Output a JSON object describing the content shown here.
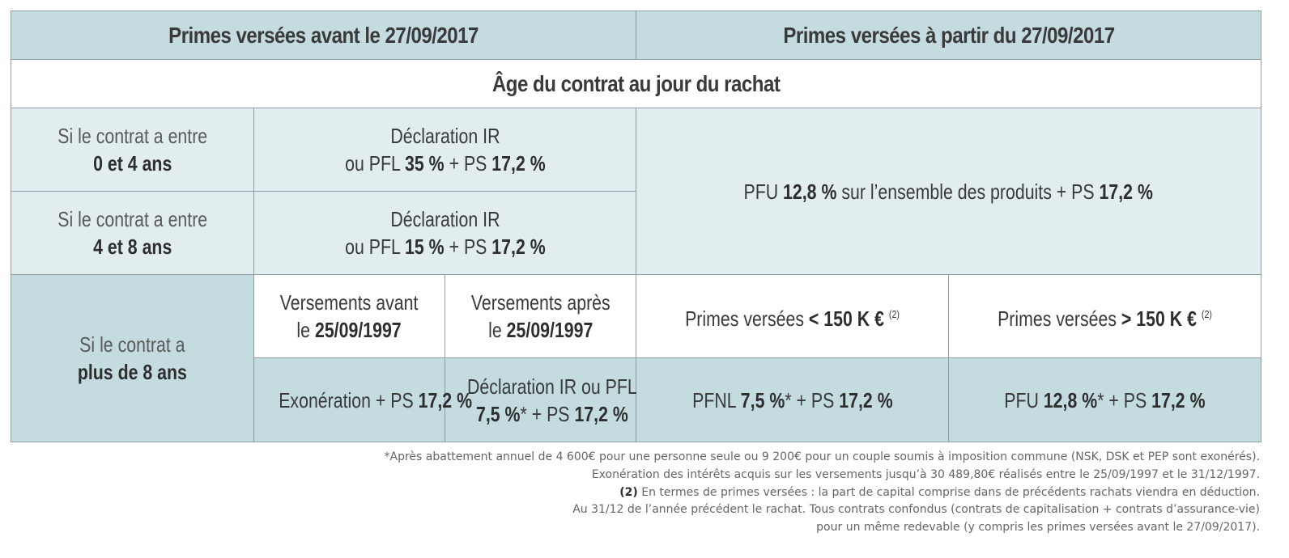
{
  "header": {
    "left": "Primes versées avant le 27/09/2017",
    "right": "Primes versées à partir du 27/09/2017"
  },
  "age_row": "Âge du contrat au jour du rachat",
  "rows": {
    "r1_label_a": "Si le contrat a entre",
    "r1_label_b": "0 et 4 ans",
    "r1_line1": "Déclaration IR",
    "r1_line2_pre": "ou PFL ",
    "r1_line2_b1": "35 %",
    "r1_line2_mid": " + PS ",
    "r1_line2_b2": "17,2 %",
    "r2_label_a": "Si le contrat a entre",
    "r2_label_b": "4 et 8 ans",
    "r2_line1": "Déclaration IR",
    "r2_line2_pre": "ou PFL ",
    "r2_line2_b1": "15 %",
    "r2_line2_mid": " + PS ",
    "r2_line2_b2": "17,2 %",
    "pfu_pre": "PFU ",
    "pfu_b1": "12,8 %",
    "pfu_mid": " sur l’ensemble des produits + PS ",
    "pfu_b2": "17,2 %",
    "r3_label_a": "Si le contrat a",
    "r3_label_b": "plus de 8 ans",
    "va_line1": "Versements avant",
    "va_line2_pre": "le ",
    "va_line2_b": "25/09/1997",
    "vp_line1": "Versements après",
    "vp_line2_pre": "le ",
    "vp_line2_b": "25/09/1997",
    "pl_pre": "Primes versées ",
    "pl_b": "< 150 K €",
    "pl_sup": "(2)",
    "pg_pre": "Primes versées ",
    "pg_b": "> 150 K €",
    "pg_sup": "(2)",
    "exo_pre": "Exonération + PS ",
    "exo_b": "17,2 %",
    "dec_line1": "Déclaration IR ou PFL",
    "dec_b1": "7,5 %",
    "dec_mid": "* + PS ",
    "dec_b2": "17,2 %",
    "pfnl_pre": "PFNL ",
    "pfnl_b1": "7,5 %",
    "pfnl_mid": "* + PS ",
    "pfnl_b2": "17,2 %",
    "pfu2_pre": "PFU ",
    "pfu2_b1": "12,8 %",
    "pfu2_mid": "* + PS ",
    "pfu2_b2": "17,2 %"
  },
  "notes": {
    "n1": "*Après abattement annuel de 4 600€ pour une personne seule ou 9 200€ pour un couple soumis à imposition commune (NSK, DSK et PEP sont exonérés).",
    "n2": "Exonération des intérêts acquis sur les versements jusqu’à 30 489,80€ réalisés entre le 25/09/1997 et le 31/12/1997.",
    "n3_b": "(2)",
    "n3": " En termes de primes versées : la part de capital comprise dans de précédents rachats viendra en déduction.",
    "n4": "Au 31/12 de l’année précédent le rachat. Tous contrats confondus (contrats de capitalisation + contrats d’assurance-vie)",
    "n5": "pour un même redevable (y compris les primes versées avant le 27/09/2017)."
  },
  "colors": {
    "header_bg": "#c4dbe0",
    "pale_bg": "#e1edef",
    "border": "#8c9ea3",
    "text": "#3a3a3a"
  }
}
